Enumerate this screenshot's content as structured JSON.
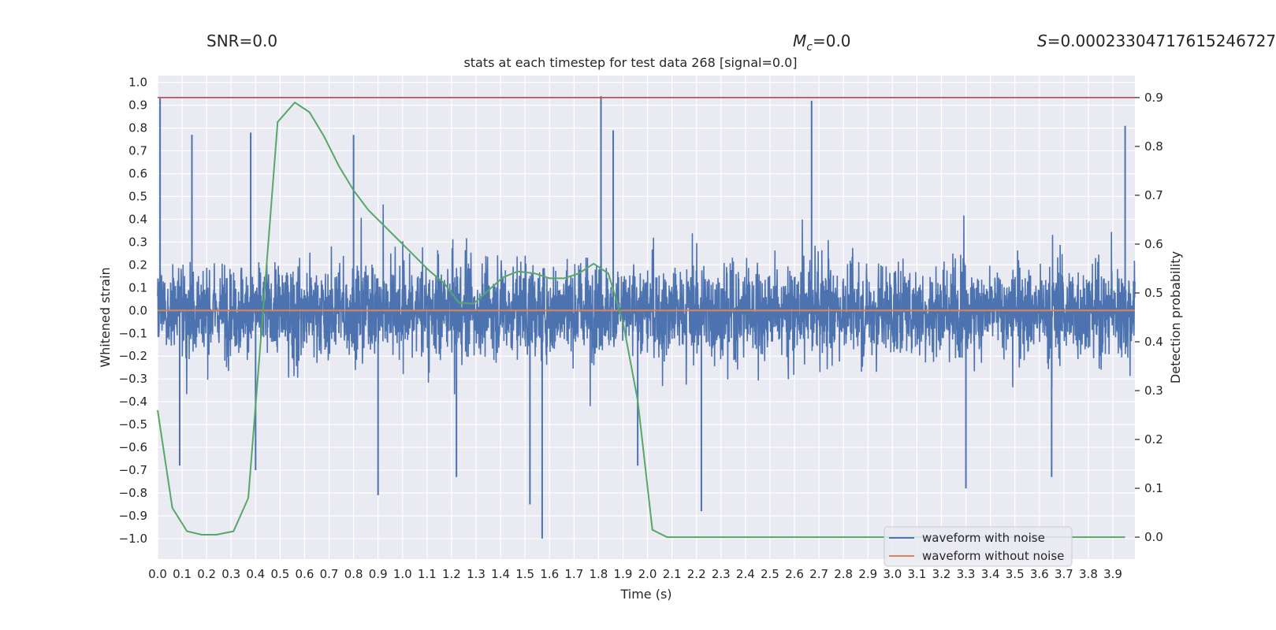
{
  "chart_data": {
    "type": "line",
    "header": {
      "snr": "SNR=0.0",
      "mc_symbol": "M",
      "mc_sub": "c",
      "mc_value": "=0.0",
      "s_symbol": "S",
      "s_value": "=0.00023304717615246727"
    },
    "title": "stats at each timestep for test data 268 [signal=0.0]",
    "xlabel": "Time (s)",
    "ylabel": "Whitened strain",
    "y2label": "Detection probability",
    "xlim": [
      0.0,
      3.99
    ],
    "ylim": [
      -1.09,
      1.03
    ],
    "y2lim": [
      -0.045,
      0.945
    ],
    "xticks": [
      "0.0",
      "0.1",
      "0.2",
      "0.3",
      "0.4",
      "0.5",
      "0.6",
      "0.7",
      "0.8",
      "0.9",
      "1.0",
      "1.1",
      "1.2",
      "1.3",
      "1.4",
      "1.5",
      "1.6",
      "1.7",
      "1.8",
      "1.9",
      "2.0",
      "2.1",
      "2.2",
      "2.3",
      "2.4",
      "2.5",
      "2.6",
      "2.7",
      "2.8",
      "2.9",
      "3.0",
      "3.1",
      "3.2",
      "3.3",
      "3.4",
      "3.5",
      "3.6",
      "3.7",
      "3.8",
      "3.9"
    ],
    "yticks": [
      "1.0",
      "0.9",
      "0.8",
      "0.7",
      "0.6",
      "0.5",
      "0.4",
      "0.3",
      "0.2",
      "0.1",
      "0.0",
      "−0.1",
      "−0.2",
      "−0.3",
      "−0.4",
      "−0.5",
      "−0.6",
      "−0.7",
      "−0.8",
      "−0.9",
      "−1.0"
    ],
    "y2ticks": [
      "0.9",
      "0.8",
      "0.7",
      "0.6",
      "0.5",
      "0.4",
      "0.3",
      "0.2",
      "0.1",
      "0.0"
    ],
    "legend": {
      "position": "bottom-right",
      "entries": [
        "waveform with noise",
        "waveform without noise"
      ]
    },
    "colors": {
      "noise": "#4c72b0",
      "clean": "#dd8452",
      "probability": "#55a868",
      "threshold": "#c44e52",
      "background": "#eaeaf2",
      "grid": "#ffffff"
    },
    "series": [
      {
        "name": "waveform with noise",
        "axis": "left",
        "style": "dense-noise",
        "envelope": {
          "typical_abs": 0.3,
          "min": -1.0,
          "max": 0.94
        },
        "peaks": [
          {
            "x": 0.01,
            "y": 0.93
          },
          {
            "x": 0.09,
            "y": -0.68
          },
          {
            "x": 0.14,
            "y": 0.77
          },
          {
            "x": 0.38,
            "y": 0.78
          },
          {
            "x": 0.4,
            "y": -0.7
          },
          {
            "x": 0.8,
            "y": 0.77
          },
          {
            "x": 0.9,
            "y": -0.81
          },
          {
            "x": 1.22,
            "y": -0.73
          },
          {
            "x": 1.52,
            "y": -0.85
          },
          {
            "x": 1.57,
            "y": -1.0
          },
          {
            "x": 1.81,
            "y": 0.94
          },
          {
            "x": 1.86,
            "y": 0.79
          },
          {
            "x": 1.96,
            "y": -0.68
          },
          {
            "x": 2.22,
            "y": -0.88
          },
          {
            "x": 2.67,
            "y": 0.92
          },
          {
            "x": 3.3,
            "y": -0.78
          },
          {
            "x": 3.65,
            "y": -0.73
          },
          {
            "x": 3.95,
            "y": 0.81
          }
        ]
      },
      {
        "name": "waveform without noise",
        "axis": "left",
        "x": [
          0.0,
          3.99
        ],
        "y": [
          0.0,
          0.0
        ]
      },
      {
        "name": "Detection probability",
        "axis": "right",
        "x": [
          0.0,
          0.06,
          0.12,
          0.18,
          0.24,
          0.31,
          0.37,
          0.43,
          0.49,
          0.56,
          0.62,
          0.68,
          0.74,
          0.8,
          0.86,
          0.92,
          0.98,
          1.05,
          1.11,
          1.17,
          1.23,
          1.29,
          1.35,
          1.41,
          1.47,
          1.54,
          1.6,
          1.66,
          1.72,
          1.78,
          1.84,
          1.9,
          1.96,
          2.02,
          2.08,
          2.14,
          2.2,
          2.3,
          2.5,
          3.0,
          3.5,
          3.95
        ],
        "y": [
          0.26,
          0.06,
          0.012,
          0.005,
          0.005,
          0.012,
          0.08,
          0.46,
          0.85,
          0.89,
          0.87,
          0.82,
          0.76,
          0.71,
          0.67,
          0.64,
          0.61,
          0.575,
          0.545,
          0.52,
          0.48,
          0.478,
          0.505,
          0.532,
          0.544,
          0.54,
          0.53,
          0.53,
          0.54,
          0.56,
          0.54,
          0.44,
          0.28,
          0.015,
          0.0,
          0.0,
          0.0,
          0.0,
          0.0,
          0.0,
          0.0,
          0.0
        ]
      },
      {
        "name": "threshold",
        "axis": "right",
        "x": [
          0.0,
          3.99
        ],
        "y": [
          0.9,
          0.9
        ]
      }
    ]
  }
}
